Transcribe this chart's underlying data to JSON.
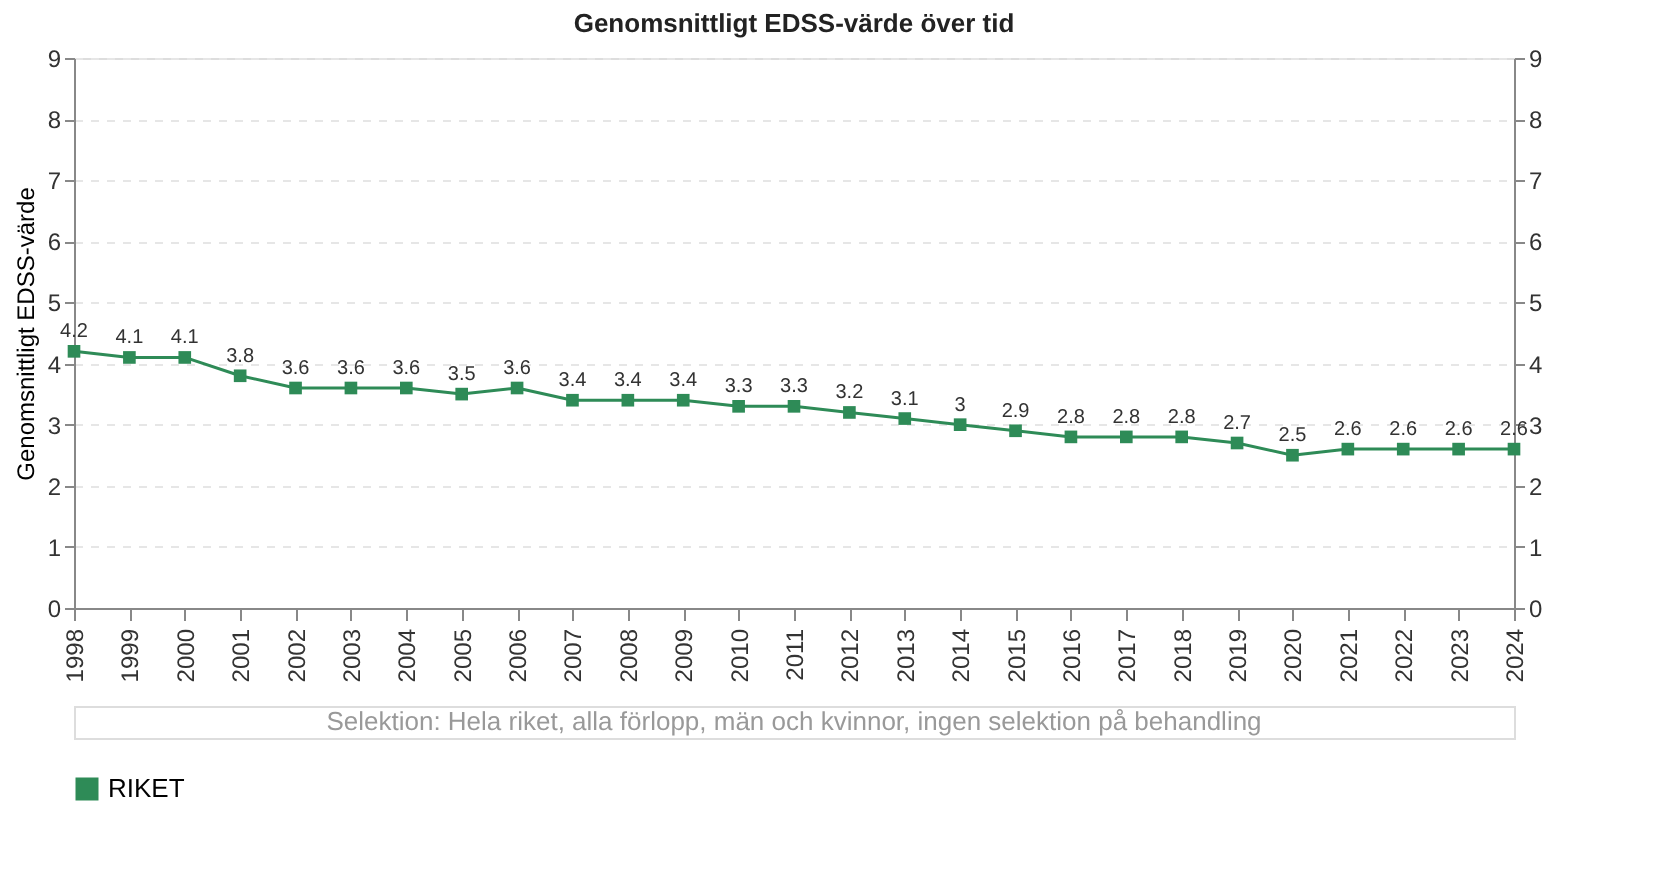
{
  "chart_data": {
    "type": "line",
    "title": "Genomsnittligt EDSS-värde över tid",
    "ylabel": "Genomsnittligt EDSS-värde",
    "categories": [
      "1998",
      "1999",
      "2000",
      "2001",
      "2002",
      "2003",
      "2004",
      "2005",
      "2006",
      "2007",
      "2008",
      "2009",
      "2010",
      "2011",
      "2012",
      "2013",
      "2014",
      "2015",
      "2016",
      "2017",
      "2018",
      "2019",
      "2020",
      "2021",
      "2022",
      "2023",
      "2024"
    ],
    "series": [
      {
        "name": "RIKET",
        "color": "#2e8b57",
        "values": [
          4.2,
          4.1,
          4.1,
          3.8,
          3.6,
          3.6,
          3.6,
          3.5,
          3.6,
          3.4,
          3.4,
          3.4,
          3.3,
          3.3,
          3.2,
          3.1,
          3,
          2.9,
          2.8,
          2.8,
          2.8,
          2.7,
          2.5,
          2.6,
          2.6,
          2.6,
          2.6
        ]
      }
    ],
    "ylim": [
      0,
      9
    ],
    "yticks": [
      0,
      1,
      2,
      3,
      4,
      5,
      6,
      7,
      8,
      9
    ],
    "y2lim": [
      0,
      9
    ],
    "y2ticks": [
      0,
      1,
      2,
      3,
      4,
      5,
      6,
      7,
      8,
      9
    ],
    "grid": "y",
    "legend": "bottom",
    "marker": "square",
    "line_style": "solid",
    "data_labels": true,
    "annotations": [
      "Selektion: Hela riket, alla förlopp, män och kvinnor, ingen selektion på behandling"
    ]
  }
}
